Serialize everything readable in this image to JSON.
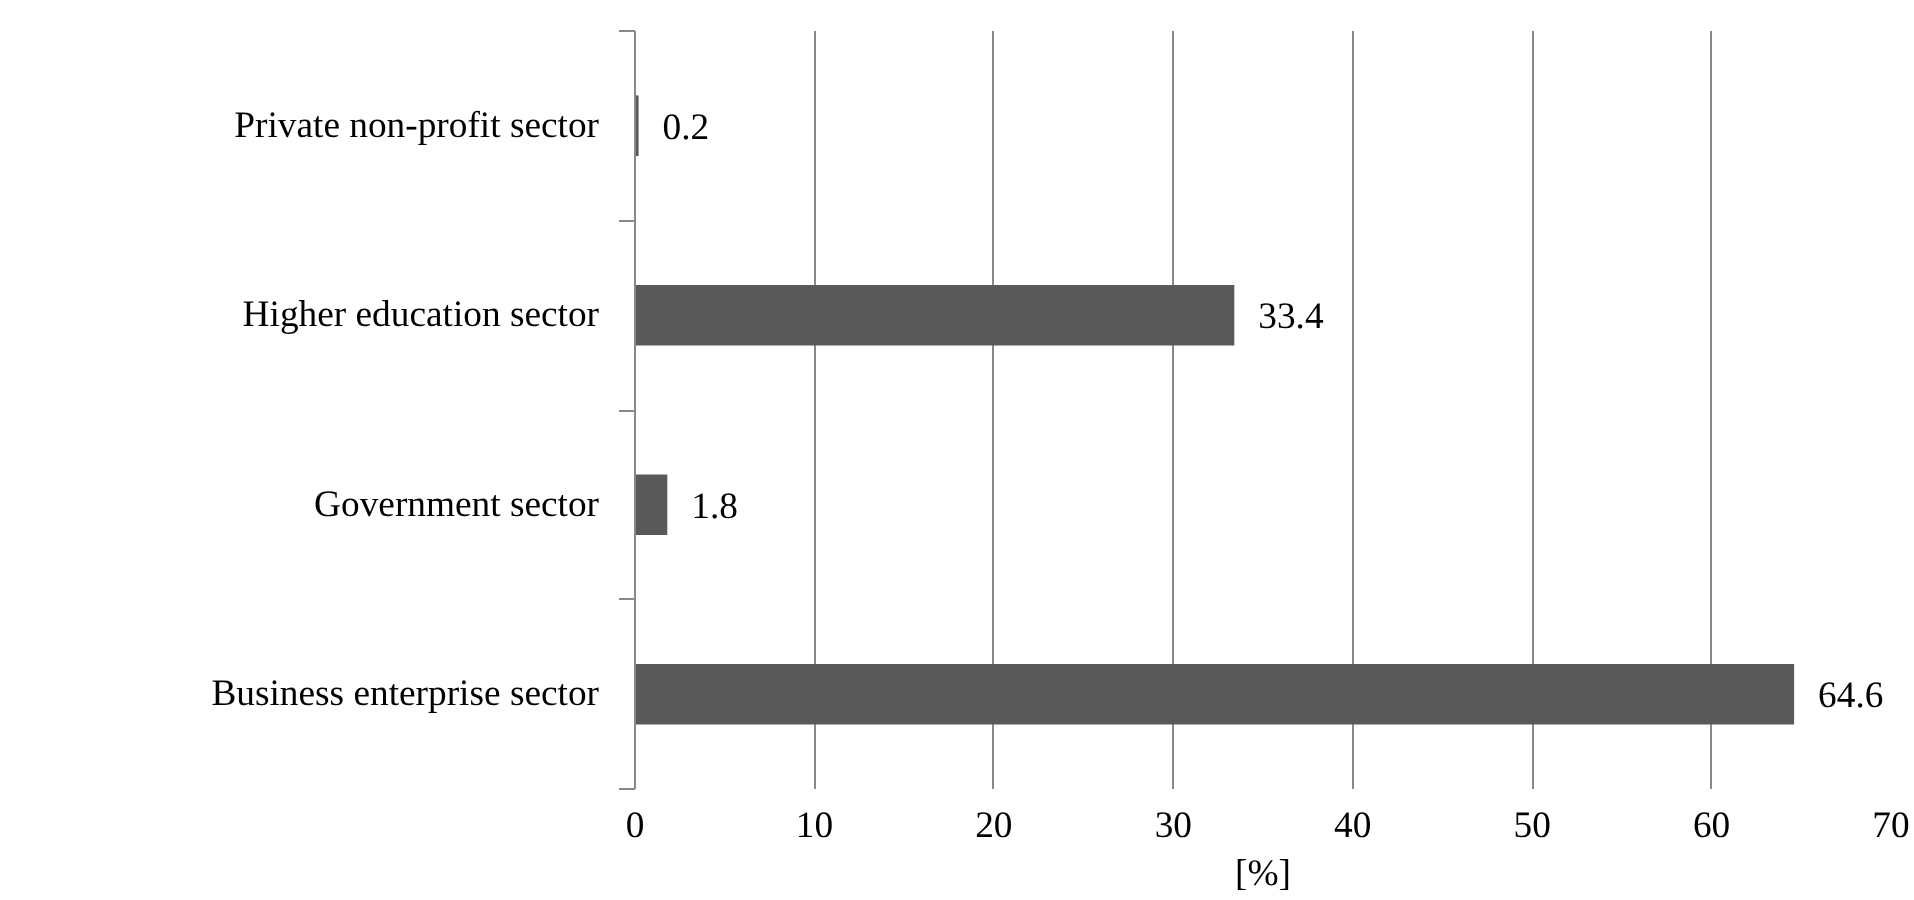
{
  "chart_data": {
    "type": "bar",
    "orientation": "horizontal",
    "xlabel": "[%]",
    "categories": [
      "Private non-profit sector",
      "Higher education sector",
      "Government sector",
      "Business enterprise sector"
    ],
    "values": [
      0.2,
      33.4,
      1.8,
      64.6
    ],
    "color": "#595959",
    "xlim": [
      0,
      70
    ],
    "xticks": [
      0,
      10,
      20,
      30,
      40,
      50,
      60,
      70
    ],
    "grid": "x",
    "data_labels": true
  }
}
